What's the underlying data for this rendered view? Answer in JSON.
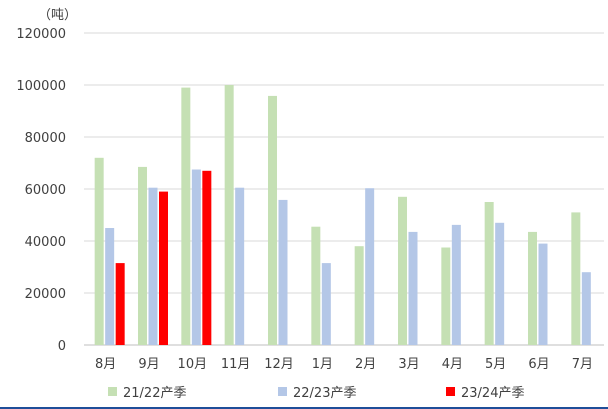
{
  "chart_data": {
    "type": "bar",
    "unit_label": "（吨）",
    "categories": [
      "8月",
      "9月",
      "10月",
      "11月",
      "12月",
      "1月",
      "2月",
      "3月",
      "4月",
      "5月",
      "6月",
      "7月"
    ],
    "ylim": [
      0,
      120000
    ],
    "yticks": [
      0,
      20000,
      40000,
      60000,
      80000,
      100000,
      120000
    ],
    "grid": true,
    "legend_position": "bottom",
    "series": [
      {
        "name": "21/22产季",
        "color": "#c5e0b4",
        "values": [
          72000,
          68500,
          99000,
          100000,
          95800,
          45500,
          38000,
          57000,
          37500,
          55000,
          43500,
          51000
        ]
      },
      {
        "name": "22/23产季",
        "color": "#b4c7e7",
        "values": [
          45000,
          60500,
          67500,
          60500,
          55800,
          31500,
          60300,
          43500,
          46200,
          47000,
          39000,
          28000
        ]
      },
      {
        "name": "23/24产季",
        "color": "#ff0000",
        "values": [
          31500,
          59000,
          67000,
          null,
          null,
          null,
          null,
          null,
          null,
          null,
          null,
          null
        ]
      }
    ]
  }
}
